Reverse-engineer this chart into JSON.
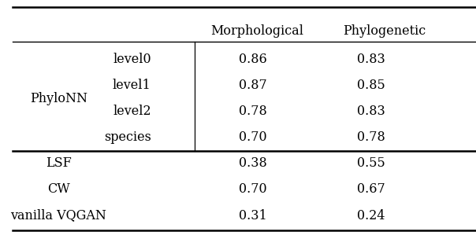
{
  "col_headers": [
    "",
    "",
    "Morphological",
    "Phylogenetic"
  ],
  "rows": [
    {
      "group": "PhyloNN",
      "sublabel": "level0",
      "morphological": "0.86",
      "phylogenetic": "0.83"
    },
    {
      "group": "",
      "sublabel": "level1",
      "morphological": "0.87",
      "phylogenetic": "0.85"
    },
    {
      "group": "",
      "sublabel": "level2",
      "morphological": "0.78",
      "phylogenetic": "0.83"
    },
    {
      "group": "",
      "sublabel": "species",
      "morphological": "0.70",
      "phylogenetic": "0.78"
    },
    {
      "group": "LSF",
      "sublabel": "",
      "morphological": "0.38",
      "phylogenetic": "0.55"
    },
    {
      "group": "CW",
      "sublabel": "",
      "morphological": "0.70",
      "phylogenetic": "0.67"
    },
    {
      "group": "vanilla VQGAN",
      "sublabel": "",
      "morphological": "0.31",
      "phylogenetic": "0.24"
    }
  ],
  "background_color": "#ffffff",
  "font_size": 11.5,
  "header_font_size": 11.5
}
